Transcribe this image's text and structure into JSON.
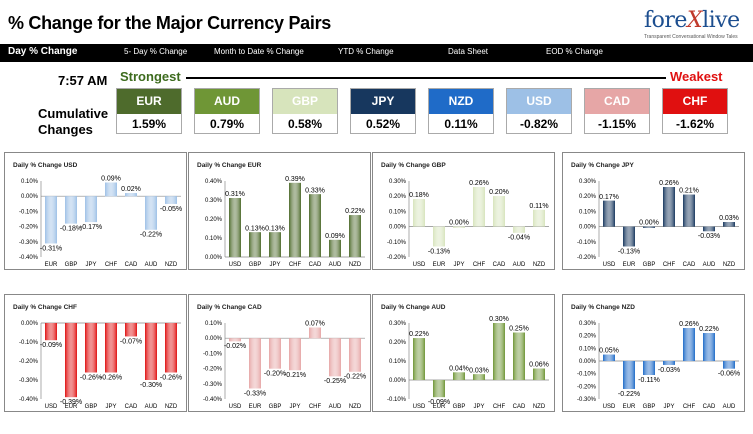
{
  "header": {
    "title": "% Change for the Major Currency Pairs",
    "logo_pre": "fore",
    "logo_x": "X",
    "logo_post": "live",
    "logo_tagline": "Transparent Conversational Window Tales"
  },
  "nav": [
    "Day % Change",
    "5- Day % Change",
    "Month to Date % Change",
    "YTD % Change",
    "Data Sheet",
    "EOD % Change"
  ],
  "time": "7:57 AM",
  "strongest_label": "Strongest",
  "weakest_label": "Weakest",
  "cumulative_label_line1": "Cumulative",
  "cumulative_label_line2": "Changes",
  "currencies": [
    {
      "name": "EUR",
      "value": "1.59%",
      "color": "#4e6b2c"
    },
    {
      "name": "AUD",
      "value": "0.79%",
      "color": "#6f9636"
    },
    {
      "name": "GBP",
      "value": "0.58%",
      "color": "#d7e4bc"
    },
    {
      "name": "JPY",
      "value": "0.52%",
      "color": "#17375e"
    },
    {
      "name": "NZD",
      "value": "0.11%",
      "color": "#1f6bc8"
    },
    {
      "name": "USD",
      "value": "-0.82%",
      "color": "#9dc0e6"
    },
    {
      "name": "CAD",
      "value": "-1.15%",
      "color": "#e6a6a6"
    },
    {
      "name": "CHF",
      "value": "-1.62%",
      "color": "#e01010"
    }
  ],
  "chart_data": [
    {
      "type": "bar",
      "title": "Daily % Change USD",
      "categories": [
        "EUR",
        "GBP",
        "JPY",
        "CHF",
        "CAD",
        "AUD",
        "NZD"
      ],
      "values": [
        -0.31,
        -0.18,
        -0.17,
        0.09,
        0.02,
        -0.22,
        -0.05
      ],
      "labels": [
        "-0.31%",
        "-0.18%",
        "-0.17%",
        "0.09%",
        "0.02%",
        "-0.22%",
        "-0.05%"
      ],
      "ylim": [
        -0.4,
        0.1
      ],
      "yticks": [
        "0.10%",
        "0.00%",
        "-0.10%",
        "-0.20%",
        "-0.30%",
        "-0.40%"
      ],
      "color": "#9dc0e6"
    },
    {
      "type": "bar",
      "title": "Daily % Change EUR",
      "categories": [
        "USD",
        "GBP",
        "JPY",
        "CHF",
        "CAD",
        "AUD",
        "NZD"
      ],
      "values": [
        0.31,
        0.13,
        0.13,
        0.39,
        0.33,
        0.09,
        0.22
      ],
      "labels": [
        "0.31%",
        "0.13%",
        "0.13%",
        "0.39%",
        "0.33%",
        "0.09%",
        "0.22%"
      ],
      "ylim": [
        0,
        0.4
      ],
      "yticks": [
        "0.40%",
        "0.30%",
        "0.20%",
        "0.10%",
        "0.00%"
      ],
      "color": "#4e6b2c"
    },
    {
      "type": "bar",
      "title": "Daily % Change GBP",
      "categories": [
        "USD",
        "EUR",
        "JPY",
        "CHF",
        "CAD",
        "AUD",
        "NZD"
      ],
      "values": [
        0.18,
        -0.13,
        0.0,
        0.26,
        0.2,
        -0.04,
        0.11
      ],
      "labels": [
        "0.18%",
        "-0.13%",
        "0.00%",
        "0.26%",
        "0.20%",
        "-0.04%",
        "0.11%"
      ],
      "ylim": [
        -0.2,
        0.3
      ],
      "yticks": [
        "0.30%",
        "0.20%",
        "0.10%",
        "0.00%",
        "-0.10%",
        "-0.20%"
      ],
      "color": "#d7e4bc"
    },
    {
      "type": "bar",
      "title": "Daily % Change JPY",
      "categories": [
        "USD",
        "EUR",
        "GBP",
        "CHF",
        "CAD",
        "AUD",
        "NZD"
      ],
      "values": [
        0.17,
        -0.13,
        0.0,
        0.26,
        0.21,
        -0.03,
        0.03
      ],
      "labels": [
        "0.17%",
        "-0.13%",
        "0.00%",
        "0.26%",
        "0.21%",
        "-0.03%",
        "0.03%"
      ],
      "ylim": [
        -0.2,
        0.3
      ],
      "yticks": [
        "0.30%",
        "0.20%",
        "0.10%",
        "0.00%",
        "-0.10%",
        "-0.20%"
      ],
      "color": "#17375e"
    },
    {
      "type": "bar",
      "title": "Daily % Change CHF",
      "categories": [
        "USD",
        "EUR",
        "GBP",
        "JPY",
        "CAD",
        "AUD",
        "NZD"
      ],
      "values": [
        -0.09,
        -0.39,
        -0.26,
        -0.26,
        -0.07,
        -0.3,
        -0.26
      ],
      "labels": [
        "-0.09%",
        "-0.39%",
        "-0.26%",
        "-0.26%",
        "-0.07%",
        "-0.30%",
        "-0.26%"
      ],
      "ylim": [
        -0.4,
        0
      ],
      "yticks": [
        "0.00%",
        "-0.10%",
        "-0.20%",
        "-0.30%",
        "-0.40%"
      ],
      "color": "#e01010"
    },
    {
      "type": "bar",
      "title": "Daily % Change CAD",
      "categories": [
        "USD",
        "EUR",
        "GBP",
        "JPY",
        "CHF",
        "AUD",
        "NZD"
      ],
      "values": [
        -0.02,
        -0.33,
        -0.2,
        -0.21,
        0.07,
        -0.25,
        -0.22
      ],
      "labels": [
        "-0.02%",
        "-0.33%",
        "-0.20%",
        "-0.21%",
        "0.07%",
        "-0.25%",
        "-0.22%"
      ],
      "ylim": [
        -0.4,
        0.1
      ],
      "yticks": [
        "0.10%",
        "0.00%",
        "-0.10%",
        "-0.20%",
        "-0.30%",
        "-0.40%"
      ],
      "color": "#e6a6a6"
    },
    {
      "type": "bar",
      "title": "Daily % Change AUD",
      "categories": [
        "USD",
        "EUR",
        "GBP",
        "JPY",
        "CHF",
        "CAD",
        "NZD"
      ],
      "values": [
        0.22,
        -0.09,
        0.04,
        0.03,
        0.3,
        0.25,
        0.06
      ],
      "labels": [
        "0.22%",
        "-0.09%",
        "0.04%",
        "0.03%",
        "0.30%",
        "0.25%",
        "0.06%"
      ],
      "ylim": [
        -0.1,
        0.3
      ],
      "yticks": [
        "0.30%",
        "0.20%",
        "0.10%",
        "0.00%",
        "-0.10%"
      ],
      "color": "#6f9636"
    },
    {
      "type": "bar",
      "title": "Daily % Change NZD",
      "categories": [
        "USD",
        "EUR",
        "GBP",
        "JPY",
        "CHF",
        "CAD",
        "AUD"
      ],
      "values": [
        0.05,
        -0.22,
        -0.11,
        -0.03,
        0.26,
        0.22,
        -0.06
      ],
      "labels": [
        "0.05%",
        "-0.22%",
        "-0.11%",
        "-0.03%",
        "0.26%",
        "0.22%",
        "-0.06%"
      ],
      "ylim": [
        -0.3,
        0.3
      ],
      "yticks": [
        "0.30%",
        "0.20%",
        "0.10%",
        "0.00%",
        "-0.10%",
        "-0.20%",
        "-0.30%"
      ],
      "color": "#1f6bc8"
    }
  ]
}
